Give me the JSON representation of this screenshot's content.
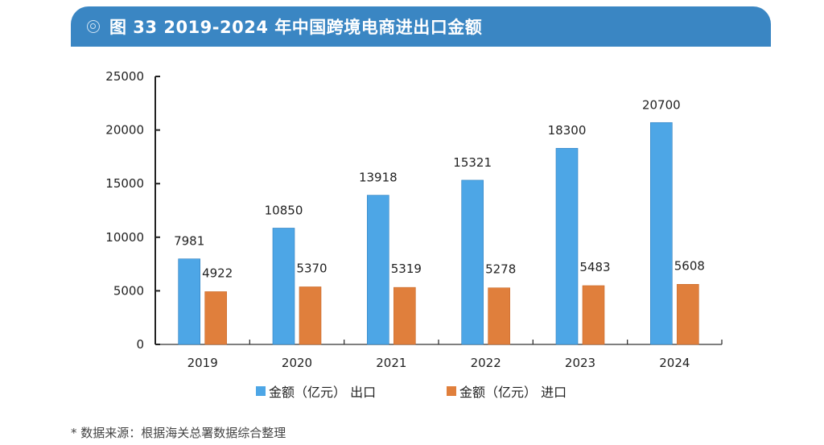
{
  "header": {
    "icon": "circle-target-icon",
    "title": "图 33  2019-2024 年中国跨境电商进出口金额"
  },
  "chart_data": {
    "type": "bar",
    "title": "2019-2024 年中国跨境电商进出口金额",
    "categories": [
      "2019",
      "2020",
      "2021",
      "2022",
      "2023",
      "2024"
    ],
    "series": [
      {
        "name": "金额（亿元） 出口",
        "color": "#4da6e6",
        "values": [
          7981,
          10850,
          13918,
          15321,
          18300,
          20700
        ]
      },
      {
        "name": "金额（亿元） 进口",
        "color": "#e07f3c",
        "values": [
          4922,
          5370,
          5319,
          5278,
          5483,
          5608
        ]
      }
    ],
    "xlabel": "",
    "ylabel": "",
    "ylim": [
      0,
      25000
    ],
    "yticks": [
      0,
      5000,
      10000,
      15000,
      20000,
      25000
    ],
    "grid": false,
    "legend_position": "bottom-center",
    "data_labels": true
  },
  "legend": [
    {
      "label": "金额（亿元） 出口",
      "color": "#4da6e6"
    },
    {
      "label": "金额（亿元） 进口",
      "color": "#e07f3c"
    }
  ],
  "footnote": "* 数据来源：根据海关总署数据综合整理"
}
